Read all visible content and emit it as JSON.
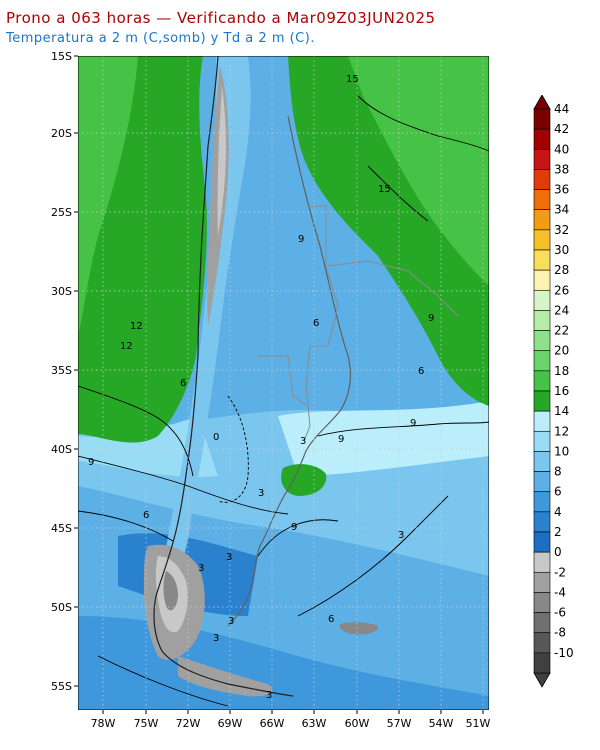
{
  "title": "Prono a 063 horas — Verificando a Mar09Z03JUN2025",
  "subtitle": "Temperatura a 2 m (C,somb) y Td a 2 m (C).",
  "lat_labels": [
    "15S",
    "20S",
    "25S",
    "30S",
    "35S",
    "40S",
    "45S",
    "50S",
    "55S"
  ],
  "lon_labels": [
    "78W",
    "75W",
    "72W",
    "69W",
    "66W",
    "63W",
    "60W",
    "57W",
    "54W",
    "51W"
  ],
  "contour_labels": [
    "15",
    "15",
    "9",
    "12",
    "12",
    "9",
    "6",
    "6",
    "9",
    "6",
    "9",
    "9",
    "3",
    "0",
    "3",
    "3",
    "6",
    "3",
    "3",
    "6",
    "3",
    "3",
    "3",
    "9"
  ],
  "colorbar": {
    "labels": [
      "44",
      "42",
      "40",
      "38",
      "36",
      "34",
      "32",
      "30",
      "28",
      "26",
      "24",
      "22",
      "20",
      "18",
      "16",
      "14",
      "12",
      "10",
      "8",
      "6",
      "4",
      "2",
      "0",
      "-2",
      "-4",
      "-6",
      "-8",
      "-10"
    ],
    "colors": [
      "#7a0000",
      "#a00000",
      "#c81414",
      "#e03c0a",
      "#f06e0a",
      "#f59a14",
      "#f5c02a",
      "#f8de5a",
      "#fdf3b0",
      "#d8f5c8",
      "#b4ecaa",
      "#8fe08a",
      "#6ad36a",
      "#46c346",
      "#26a826",
      "#b9eefa",
      "#98dcf5",
      "#7ac6ef",
      "#5db0e6",
      "#3f98dc",
      "#2a82cf",
      "#1b6fc2",
      "#c8c8c8",
      "#a0a0a0",
      "#888888",
      "#707070",
      "#585858",
      "#404040"
    ],
    "top_arrow_color": "#7a0000",
    "bottom_arrow_color": "#404040"
  }
}
